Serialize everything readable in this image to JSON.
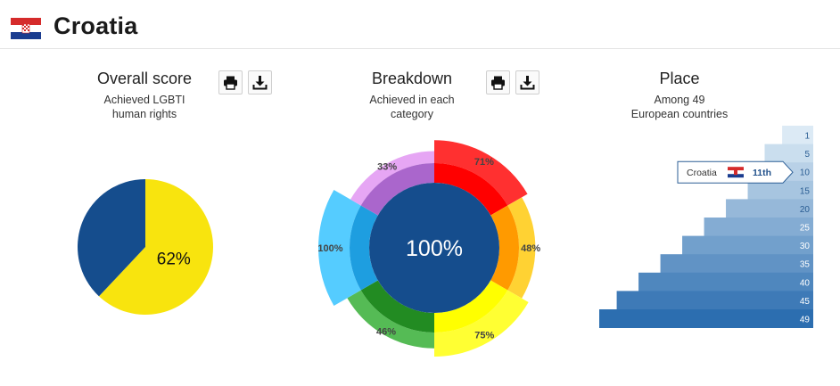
{
  "header": {
    "country": "Croatia"
  },
  "panels": {
    "overall": {
      "title": "Overall score",
      "subtitle_lines": [
        "Achieved LGBTI",
        "human rights"
      ]
    },
    "breakdown": {
      "title": "Breakdown",
      "subtitle_lines": [
        "Achieved in each",
        "category"
      ]
    },
    "place": {
      "title": "Place",
      "subtitle_lines": [
        "Among 49",
        "European countries"
      ]
    }
  },
  "icons": [
    "print-icon",
    "download-icon"
  ],
  "colors": {
    "navy": "#154d8d",
    "yellow": "#f8e40e",
    "flag_red": "#d52b2b",
    "flag_blue": "#1a3c8f"
  },
  "chart_data": [
    {
      "type": "pie",
      "title": "Overall score",
      "slices": [
        {
          "label": "62%",
          "value": 62,
          "color": "#f8e40e"
        },
        {
          "label": "",
          "value": 38,
          "color": "#154d8d"
        }
      ]
    },
    {
      "type": "pie",
      "title": "Breakdown",
      "center_label": "100%",
      "categories": [
        {
          "value": 71,
          "label": "71%",
          "inner": "#ff0000",
          "outer": "#ff3030"
        },
        {
          "value": 48,
          "label": "48%",
          "inner": "#ff9a00",
          "outer": "#ffd233"
        },
        {
          "value": 75,
          "label": "75%",
          "inner": "#ffff00",
          "outer": "#ffff33"
        },
        {
          "value": 46,
          "label": "46%",
          "inner": "#228b22",
          "outer": "#55bb55"
        },
        {
          "value": 100,
          "label": "100%",
          "inner": "#1e9ee0",
          "outer": "#55ccff"
        },
        {
          "value": 33,
          "label": "33%",
          "inner": "#aa66cc",
          "outer": "#e6a6f4"
        }
      ]
    },
    {
      "type": "bar",
      "title": "Place",
      "categories": [
        "1",
        "5",
        "10",
        "15",
        "20",
        "25",
        "30",
        "35",
        "40",
        "45",
        "49"
      ],
      "values": [
        1,
        5,
        10,
        15,
        20,
        25,
        30,
        35,
        40,
        45,
        49
      ],
      "highlight": {
        "country": "Croatia",
        "rank_label": "11th",
        "category": "10"
      }
    }
  ]
}
